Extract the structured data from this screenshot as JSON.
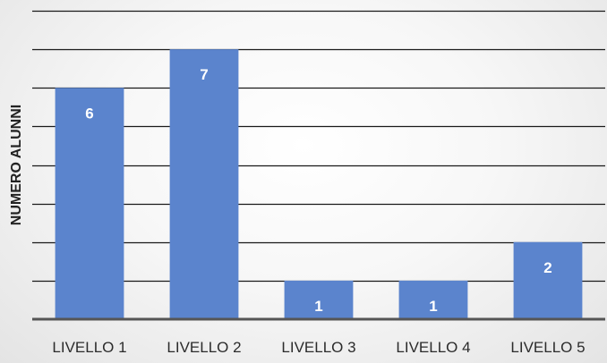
{
  "chart_data": {
    "type": "bar",
    "title": "",
    "xlabel": "",
    "ylabel": "NUMERO ALUNNI",
    "categories": [
      "LIVELLO 1",
      "LIVELLO 2",
      "LIVELLO 3",
      "LIVELLO 4",
      "LIVELLO 5"
    ],
    "series": [
      {
        "values": [
          6,
          7,
          1,
          1,
          2
        ]
      }
    ],
    "ylim": [
      0,
      8
    ],
    "grid": true,
    "show_tick_labels_y": false,
    "bar_color": "#5b84cd",
    "gridline_color": "#1a1a1a",
    "legend": "none"
  }
}
